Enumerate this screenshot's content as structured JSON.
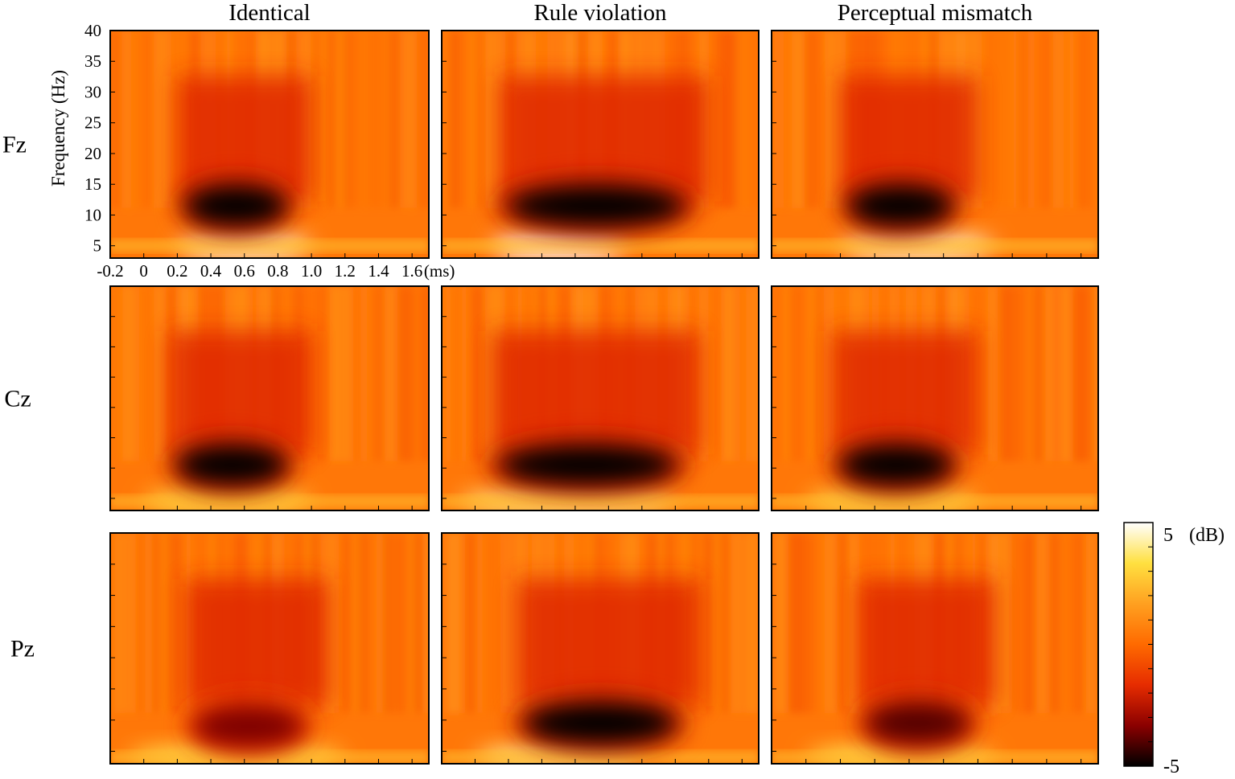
{
  "chart_data": {
    "type": "heatmap",
    "columns": [
      "Identical",
      "Rule violation",
      "Perceptual mismatch"
    ],
    "rows": [
      "Fz",
      "Cz",
      "Pz"
    ],
    "ylabel": "Frequency (Hz)",
    "xlabel": "(ms)",
    "xlim": [
      -0.2,
      1.7
    ],
    "ylim": [
      3,
      40
    ],
    "xticks": [
      -0.2,
      0,
      0.2,
      0.4,
      0.6,
      0.8,
      1.0,
      1.2,
      1.4,
      1.6
    ],
    "x_tick_labels": [
      "-0.2",
      "0",
      "0.2",
      "0.4",
      "0.6",
      "0.8",
      "1.0",
      "1.2",
      "1.4",
      "1.6"
    ],
    "yticks": [
      5,
      10,
      15,
      20,
      25,
      30,
      35,
      40
    ],
    "y_tick_labels": [
      "5",
      "10",
      "15",
      "20",
      "25",
      "30",
      "35",
      "40"
    ],
    "colorbar": {
      "min": -5,
      "max": 5,
      "min_label": "-5",
      "max_label": "5",
      "unit": "(dB)",
      "colormap": "hot"
    },
    "colormap_stops": [
      "#000000",
      "#8b0000",
      "#e62c00",
      "#ff6a00",
      "#ffa020",
      "#ffe040",
      "#ffffff"
    ],
    "baseline_db": 0.4,
    "panels": [
      {
        "row": "Fz",
        "column": "Identical",
        "alpha_blob": {
          "t_start": 0.25,
          "t_end": 0.85,
          "f_center": 11.5,
          "depth_db": -5
        },
        "low_freq_power": {
          "t_start": 0.2,
          "t_end": 1.0,
          "f_center": 5,
          "peak_db": 4.5
        }
      },
      {
        "row": "Fz",
        "column": "Rule violation",
        "alpha_blob": {
          "t_start": 0.2,
          "t_end": 1.25,
          "f_center": 11.5,
          "depth_db": -5
        },
        "low_freq_power": {
          "t_start": 0.1,
          "t_end": 0.9,
          "f_center": 5,
          "peak_db": 5
        }
      },
      {
        "row": "Fz",
        "column": "Perceptual mismatch",
        "alpha_blob": {
          "t_start": 0.25,
          "t_end": 0.85,
          "f_center": 11.5,
          "depth_db": -5
        },
        "low_freq_power": {
          "t_start": 0.2,
          "t_end": 1.1,
          "f_center": 5,
          "peak_db": 4.5
        }
      },
      {
        "row": "Cz",
        "column": "Identical",
        "alpha_blob": {
          "t_start": 0.2,
          "t_end": 0.85,
          "f_center": 10.5,
          "depth_db": -5
        },
        "low_freq_power": {
          "t_start": 0.0,
          "t_end": 1.0,
          "f_center": 4.5,
          "peak_db": 3.5
        }
      },
      {
        "row": "Cz",
        "column": "Rule violation",
        "alpha_blob": {
          "t_start": 0.15,
          "t_end": 1.2,
          "f_center": 10.5,
          "depth_db": -5
        },
        "low_freq_power": {
          "t_start": -0.1,
          "t_end": 1.2,
          "f_center": 4.5,
          "peak_db": 4
        }
      },
      {
        "row": "Cz",
        "column": "Perceptual mismatch",
        "alpha_blob": {
          "t_start": 0.2,
          "t_end": 0.85,
          "f_center": 10.5,
          "depth_db": -5
        },
        "low_freq_power": {
          "t_start": 0.0,
          "t_end": 1.0,
          "f_center": 4.5,
          "peak_db": 3.5
        }
      },
      {
        "row": "Pz",
        "column": "Identical",
        "alpha_blob": {
          "t_start": 0.3,
          "t_end": 0.95,
          "f_center": 9,
          "depth_db": -3.5
        },
        "low_freq_power": {
          "t_start": -0.1,
          "t_end": 1.2,
          "f_center": 4,
          "peak_db": 3.5
        }
      },
      {
        "row": "Pz",
        "column": "Rule violation",
        "alpha_blob": {
          "t_start": 0.3,
          "t_end": 1.2,
          "f_center": 9.5,
          "depth_db": -5
        },
        "low_freq_power": {
          "t_start": 0.0,
          "t_end": 1.0,
          "f_center": 4,
          "peak_db": 4
        }
      },
      {
        "row": "Pz",
        "column": "Perceptual mismatch",
        "alpha_blob": {
          "t_start": 0.35,
          "t_end": 0.95,
          "f_center": 9.5,
          "depth_db": -4
        },
        "low_freq_power": {
          "t_start": 0.0,
          "t_end": 1.1,
          "f_center": 4,
          "peak_db": 3.5
        }
      }
    ]
  }
}
